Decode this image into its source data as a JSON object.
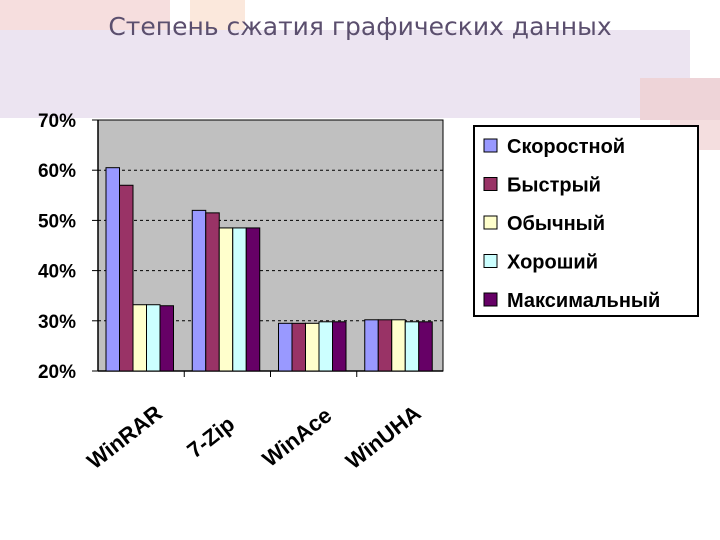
{
  "slide": {
    "title": "Степень сжатия графических данных"
  },
  "colors": {
    "plot_background": "#c0c0c0",
    "decor_pink": "#f6dede",
    "decor_lavender": "#ece4f1"
  },
  "chart_data": {
    "type": "bar",
    "title": "",
    "xlabel": "",
    "ylabel": "",
    "categories": [
      "WinRAR",
      "7-Zip",
      "WinAce",
      "WinUHA"
    ],
    "ylim": [
      20,
      70
    ],
    "yticks": [
      "20%",
      "30%",
      "40%",
      "50%",
      "60%",
      "70%"
    ],
    "grid": true,
    "legend_position": "right",
    "series": [
      {
        "name": "Скоростной",
        "color": "#9999ff",
        "values": [
          60.5,
          52,
          29.5,
          30.2
        ]
      },
      {
        "name": "Быстрый",
        "color": "#993366",
        "values": [
          57,
          51.5,
          29.5,
          30.2
        ]
      },
      {
        "name": "Обычный",
        "color": "#ffffcc",
        "values": [
          33.2,
          48.5,
          29.5,
          30.2
        ]
      },
      {
        "name": "Хороший",
        "color": "#ccffff",
        "values": [
          33.2,
          48.5,
          29.8,
          29.8
        ]
      },
      {
        "name": "Максимальный",
        "color": "#660066",
        "values": [
          33,
          48.5,
          29.8,
          29.8
        ]
      }
    ]
  }
}
